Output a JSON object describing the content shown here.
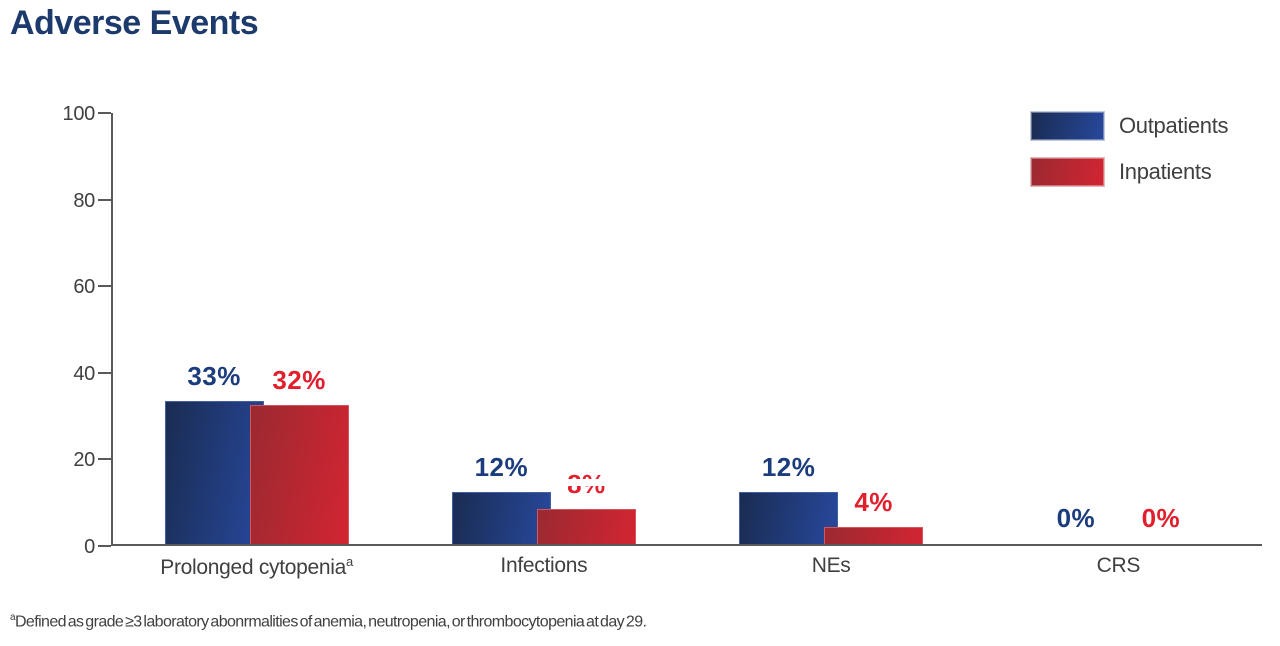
{
  "title": "Adverse Events",
  "colors": {
    "title": "#1d3a6c",
    "axis": "#595959",
    "text": "#404040",
    "outpatients_dark": "#1a2c52",
    "outpatients_light": "#27489c",
    "inpatients_dark": "#9b2931",
    "inpatients_light": "#d22531",
    "data_label_blue": "#1b3c7d",
    "data_label_red": "#e11f2d"
  },
  "legend": [
    {
      "label": "Outpatients"
    },
    {
      "label": "Inpatients"
    }
  ],
  "chart_data": {
    "type": "bar",
    "title": "Adverse Events",
    "categories": [
      {
        "label": "Prolonged cytopenia",
        "sup": "a"
      },
      {
        "label": "Infections",
        "sup": ""
      },
      {
        "label": "NEs",
        "sup": ""
      },
      {
        "label": "CRS",
        "sup": ""
      }
    ],
    "series": [
      {
        "name": "Outpatients",
        "values": [
          33,
          12,
          12,
          0
        ],
        "labels": [
          "33%",
          "12%",
          "12%",
          "0%"
        ],
        "label_clipped": [
          false,
          false,
          false,
          false
        ]
      },
      {
        "name": "Inpatients",
        "values": [
          32,
          8,
          4,
          0
        ],
        "labels": [
          "32%",
          "8%",
          "4%",
          "0%"
        ],
        "label_clipped": [
          false,
          true,
          false,
          false
        ]
      }
    ],
    "ylim": [
      0,
      100
    ],
    "yticks": [
      0,
      20,
      40,
      60,
      80,
      100
    ],
    "xlabel": "",
    "ylabel": "",
    "grid": false,
    "legend_position": "top-right"
  },
  "footnote": {
    "sup": "a",
    "text": "Defined as grade ≥3 laboratory abonrmalities of anemia, neutropenia, or thrombocytopenia at day 29."
  }
}
